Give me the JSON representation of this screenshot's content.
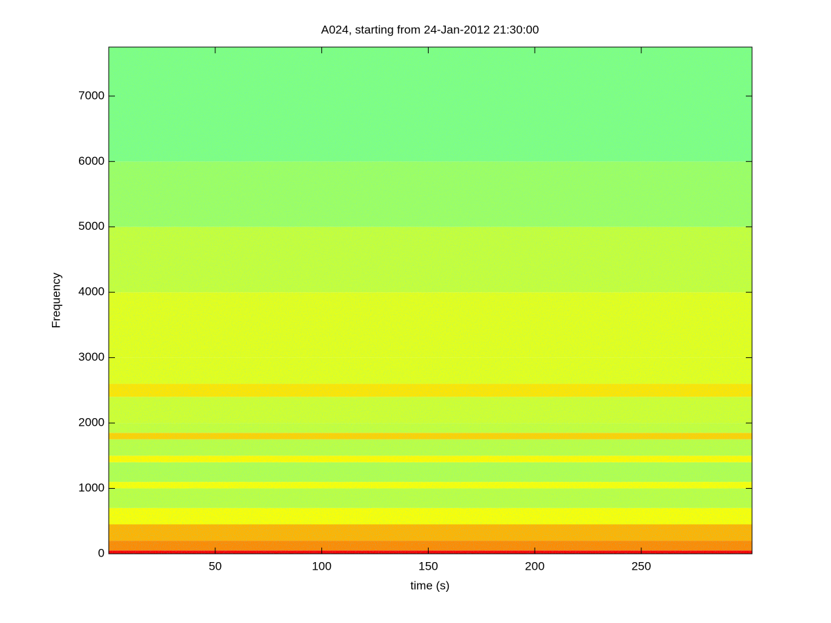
{
  "chart_data": {
    "type": "spectrogram",
    "title": "A024, starting from 24-Jan-2012 21:30:00",
    "xlabel": "time (s)",
    "ylabel": "Frequency",
    "xlim": [
      0,
      302
    ],
    "ylim": [
      0,
      7750
    ],
    "xticks": [
      50,
      100,
      150,
      200,
      250
    ],
    "yticks": [
      0,
      1000,
      2000,
      3000,
      4000,
      5000,
      6000,
      7000
    ],
    "colormap": "jet",
    "bins": [
      0,
      50,
      200,
      450,
      700,
      1000,
      1100,
      1400,
      1500,
      1750,
      1850,
      2000,
      2400,
      2600,
      3000,
      4000,
      5000,
      6000,
      7750
    ],
    "levels": [
      0.88,
      0.74,
      0.7,
      0.62,
      0.56,
      0.62,
      0.55,
      0.63,
      0.56,
      0.67,
      0.57,
      0.58,
      0.65,
      0.6,
      0.6,
      0.57,
      0.53,
      0.5
    ]
  }
}
